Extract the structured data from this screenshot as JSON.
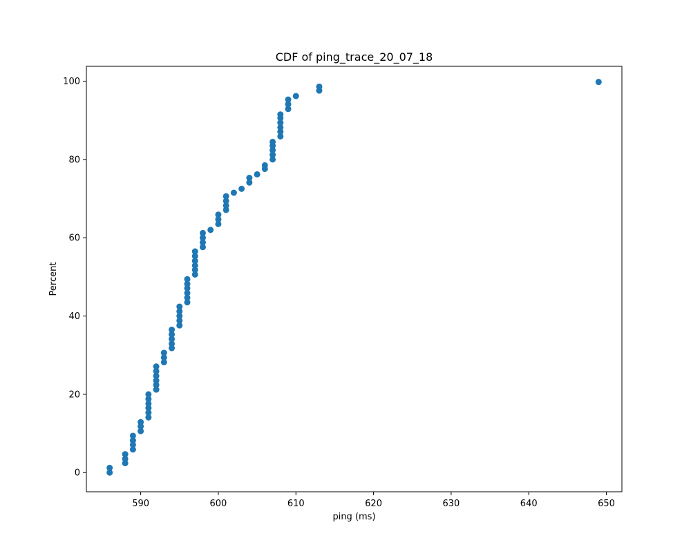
{
  "chart_data": {
    "type": "scatter",
    "title": "CDF of ping_trace_20_07_18",
    "xlabel": "ping (ms)",
    "ylabel": "Percent",
    "xlim": [
      583,
      652
    ],
    "ylim": [
      -4.9,
      103.8
    ],
    "xticks": [
      590,
      600,
      610,
      620,
      630,
      640,
      650
    ],
    "yticks": [
      0,
      20,
      40,
      60,
      80,
      100
    ],
    "grid": false,
    "color": "#1f77b4",
    "points": [
      [
        586,
        0.0
      ],
      [
        586,
        1.2
      ],
      [
        588,
        2.4
      ],
      [
        588,
        3.5
      ],
      [
        588,
        4.7
      ],
      [
        589,
        5.9
      ],
      [
        589,
        7.1
      ],
      [
        589,
        8.2
      ],
      [
        589,
        9.4
      ],
      [
        590,
        10.6
      ],
      [
        590,
        11.8
      ],
      [
        590,
        12.9
      ],
      [
        591,
        14.1
      ],
      [
        591,
        15.3
      ],
      [
        591,
        16.5
      ],
      [
        591,
        17.6
      ],
      [
        591,
        18.8
      ],
      [
        591,
        20.0
      ],
      [
        592,
        21.2
      ],
      [
        592,
        22.4
      ],
      [
        592,
        23.5
      ],
      [
        592,
        24.7
      ],
      [
        592,
        25.9
      ],
      [
        592,
        27.1
      ],
      [
        593,
        28.2
      ],
      [
        593,
        29.4
      ],
      [
        593,
        30.6
      ],
      [
        594,
        31.8
      ],
      [
        594,
        32.9
      ],
      [
        594,
        34.1
      ],
      [
        594,
        35.3
      ],
      [
        594,
        36.5
      ],
      [
        595,
        37.6
      ],
      [
        595,
        38.8
      ],
      [
        595,
        40.0
      ],
      [
        595,
        41.2
      ],
      [
        595,
        42.4
      ],
      [
        596,
        43.5
      ],
      [
        596,
        44.7
      ],
      [
        596,
        45.9
      ],
      [
        596,
        47.1
      ],
      [
        596,
        48.2
      ],
      [
        596,
        49.4
      ],
      [
        597,
        50.6
      ],
      [
        597,
        51.8
      ],
      [
        597,
        52.9
      ],
      [
        597,
        54.1
      ],
      [
        597,
        55.3
      ],
      [
        597,
        56.5
      ],
      [
        598,
        57.6
      ],
      [
        598,
        58.8
      ],
      [
        598,
        60.0
      ],
      [
        598,
        61.2
      ],
      [
        599,
        62.0
      ],
      [
        600,
        63.5
      ],
      [
        600,
        64.7
      ],
      [
        600,
        65.9
      ],
      [
        601,
        67.1
      ],
      [
        601,
        68.2
      ],
      [
        601,
        69.4
      ],
      [
        601,
        70.6
      ],
      [
        602,
        71.5
      ],
      [
        603,
        72.5
      ],
      [
        604,
        74.1
      ],
      [
        604,
        75.3
      ],
      [
        605,
        76.2
      ],
      [
        606,
        77.6
      ],
      [
        606,
        78.5
      ],
      [
        607,
        80.0
      ],
      [
        607,
        81.2
      ],
      [
        607,
        82.4
      ],
      [
        607,
        83.5
      ],
      [
        607,
        84.5
      ],
      [
        608,
        85.9
      ],
      [
        608,
        87.1
      ],
      [
        608,
        88.2
      ],
      [
        608,
        89.4
      ],
      [
        608,
        90.6
      ],
      [
        608,
        91.5
      ],
      [
        609,
        92.9
      ],
      [
        609,
        94.1
      ],
      [
        609,
        95.3
      ],
      [
        610,
        96.2
      ],
      [
        613,
        97.6
      ],
      [
        613,
        98.6
      ],
      [
        649,
        99.8
      ]
    ]
  }
}
